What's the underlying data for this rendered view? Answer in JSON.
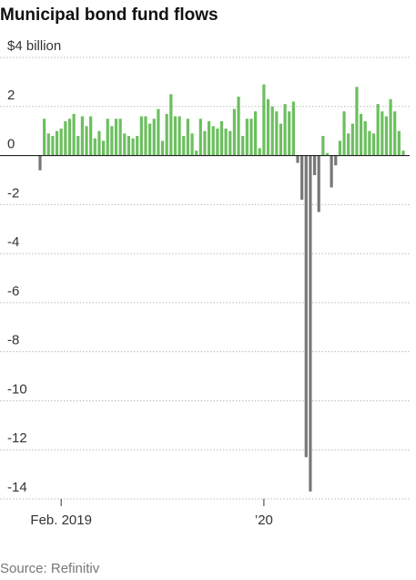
{
  "chart_data": {
    "type": "bar",
    "title": "Municipal bond fund flows",
    "source": "Source: Refinitiv",
    "categories": [
      null,
      null,
      null,
      null,
      null,
      "Feb. 2019",
      null,
      null,
      null,
      null,
      null,
      null,
      null,
      null,
      null,
      null,
      null,
      null,
      null,
      null,
      null,
      null,
      null,
      null,
      null,
      null,
      null,
      null,
      null,
      null,
      null,
      null,
      null,
      null,
      null,
      null,
      null,
      null,
      null,
      null,
      null,
      null,
      null,
      null,
      null,
      null,
      null,
      null,
      null,
      null,
      null,
      null,
      null,
      "’20",
      null,
      null,
      null,
      null,
      null,
      null,
      null,
      null,
      null,
      null,
      null,
      null,
      null,
      null,
      null,
      null,
      null,
      null,
      null,
      null,
      null,
      null,
      null,
      null,
      null,
      null,
      null,
      null,
      null,
      null,
      null,
      null,
      null
    ],
    "values": [
      -0.6,
      1.5,
      0.9,
      0.8,
      1.0,
      1.1,
      1.4,
      1.5,
      1.7,
      0.8,
      1.6,
      1.2,
      1.6,
      0.7,
      1.0,
      0.6,
      1.5,
      1.2,
      1.5,
      1.5,
      0.9,
      0.8,
      0.7,
      0.8,
      1.6,
      1.6,
      1.3,
      1.5,
      1.9,
      0.6,
      1.7,
      2.5,
      1.6,
      1.6,
      0.8,
      1.5,
      0.9,
      0.2,
      1.5,
      1.0,
      1.4,
      1.2,
      1.1,
      1.4,
      1.1,
      1.0,
      1.9,
      2.4,
      0.8,
      1.5,
      1.5,
      1.8,
      0.3,
      2.9,
      2.3,
      2.0,
      1.8,
      1.3,
      2.1,
      1.8,
      2.2,
      -0.3,
      -1.8,
      -12.3,
      -13.7,
      -0.8,
      -2.3,
      0.8,
      0.1,
      -1.3,
      -0.4,
      0.6,
      1.8,
      0.9,
      1.3,
      2.8,
      1.7,
      1.4,
      1.0,
      0.9,
      2.1,
      1.8,
      1.6,
      2.3,
      1.8,
      1.0,
      0.2
    ],
    "positive_color": "#6cbf5f",
    "negative_color": "#777777",
    "ylim": [
      -14,
      4
    ],
    "yticks": [
      {
        "value": 4,
        "label": "$4 billion"
      },
      2,
      0,
      -2,
      -4,
      -6,
      -8,
      -10,
      -12,
      -14
    ],
    "grid": true
  }
}
